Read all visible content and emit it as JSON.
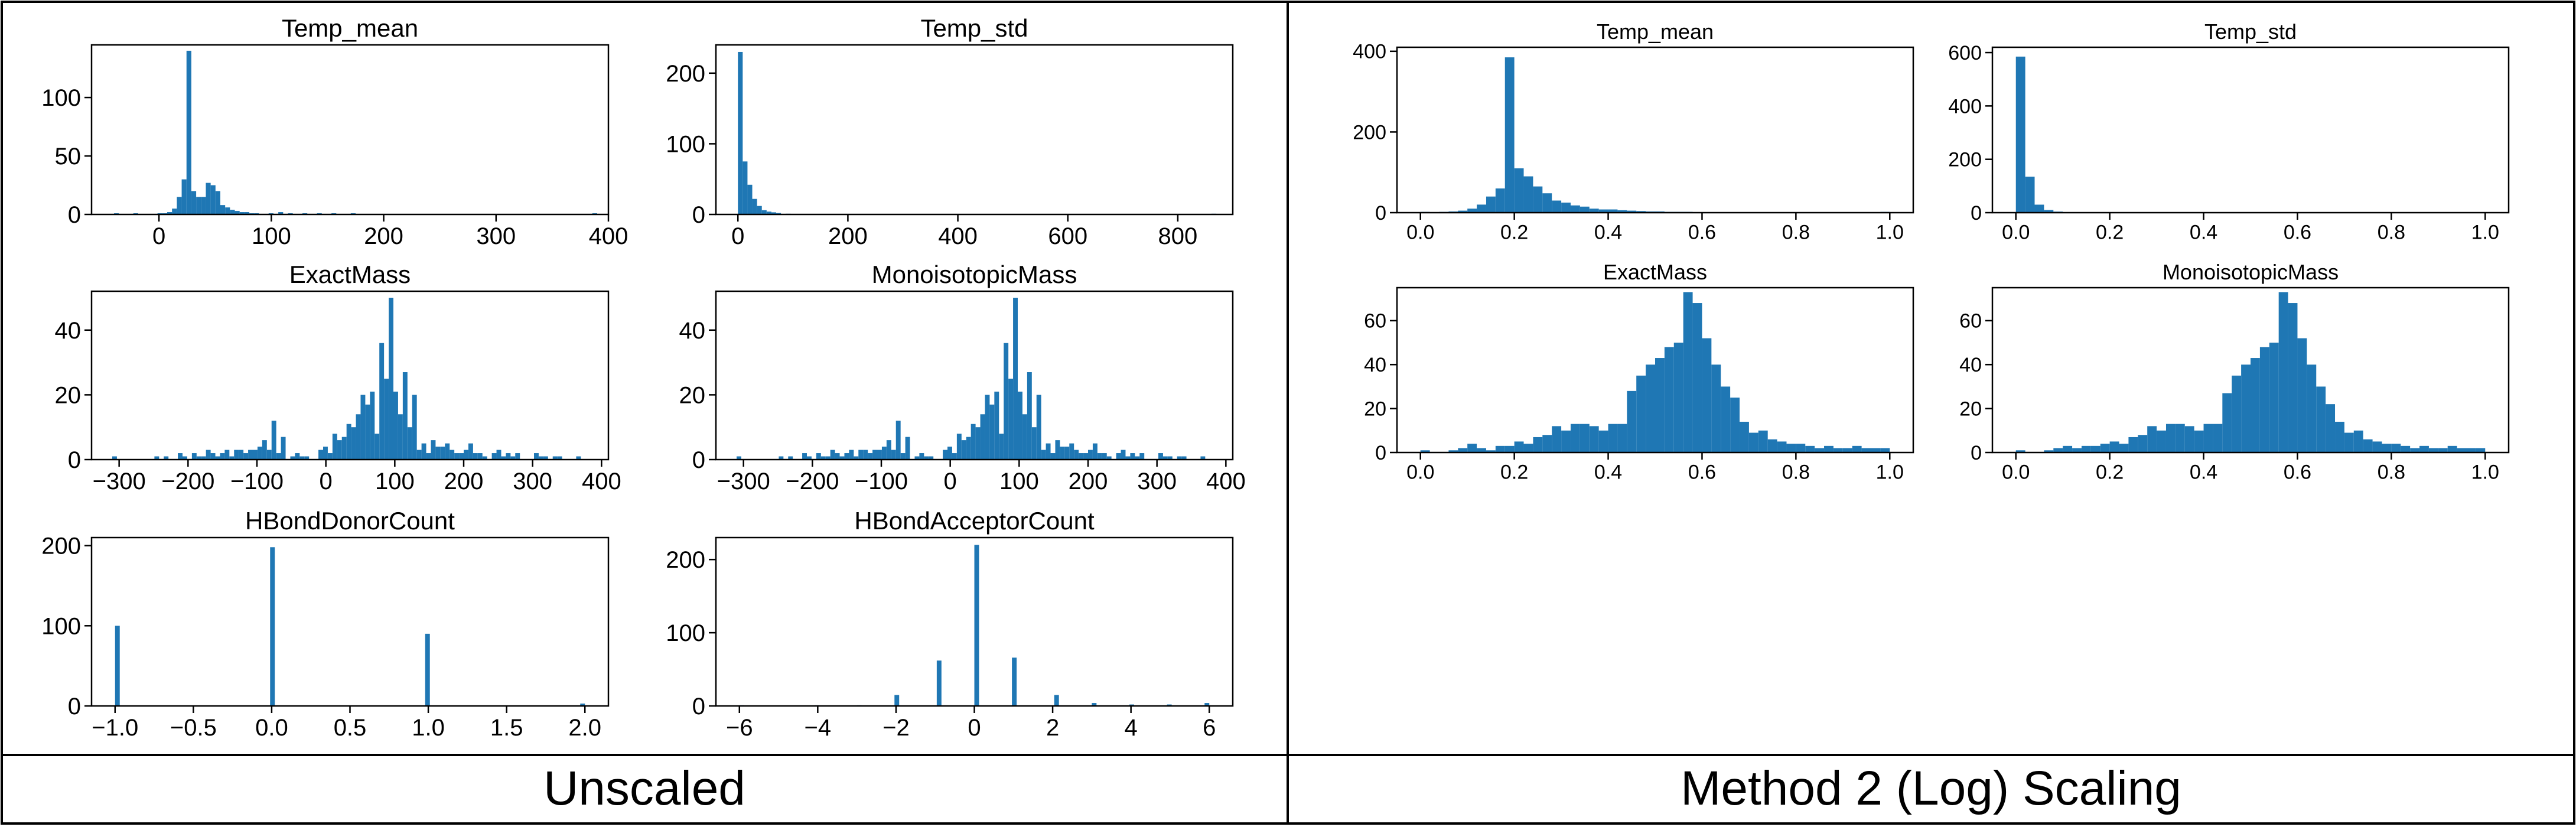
{
  "panels": [
    {
      "caption": "Unscaled"
    },
    {
      "caption": "Method 2 (Log) Scaling"
    }
  ],
  "style": {
    "bar_color": "#1f77b4",
    "border_color": "#000000",
    "background": "#ffffff"
  },
  "chart_data": [
    {
      "type": "bar",
      "panel": "unscaled",
      "title": "Temp_mean",
      "xlim": [
        -60,
        400
      ],
      "xticks": [
        0,
        100,
        200,
        300,
        400
      ],
      "ylim": [
        0,
        145
      ],
      "yticks": [
        0,
        50,
        100
      ],
      "bin_edges_start": -40,
      "bin_width": 4.3,
      "counts": [
        1,
        0,
        0,
        0,
        1,
        0,
        0,
        0,
        0,
        1,
        1,
        2,
        5,
        15,
        30,
        140,
        20,
        15,
        15,
        27,
        25,
        20,
        8,
        6,
        4,
        3,
        2,
        2,
        1,
        1,
        0,
        0,
        1,
        0,
        2,
        0,
        1,
        0,
        0,
        1,
        0,
        0,
        1,
        0,
        0,
        1,
        0,
        0,
        0,
        1,
        0,
        0,
        0,
        0,
        0,
        0,
        0,
        0,
        0,
        0,
        0,
        0,
        0,
        0,
        0,
        0,
        0,
        0,
        0,
        0,
        0,
        0,
        0,
        0,
        0,
        0,
        0,
        0,
        0,
        0,
        0,
        0,
        0,
        0,
        0,
        0,
        0,
        0,
        0,
        0,
        0,
        0,
        0,
        0,
        0,
        0,
        0,
        0,
        0,
        1
      ]
    },
    {
      "type": "bar",
      "panel": "unscaled",
      "title": "Temp_std",
      "xlim": [
        -40,
        900
      ],
      "xticks": [
        0,
        200,
        400,
        600,
        800
      ],
      "ylim": [
        0,
        240
      ],
      "yticks": [
        0,
        100,
        200
      ],
      "bin_edges_start": 0,
      "bin_width": 8.7,
      "counts": [
        230,
        75,
        42,
        22,
        12,
        6,
        4,
        3,
        2,
        0,
        1,
        0,
        0,
        0,
        0,
        0,
        0,
        0,
        0,
        0,
        0,
        0,
        0,
        0,
        0,
        0,
        0,
        0,
        0,
        0,
        0,
        0,
        0,
        0,
        0,
        0,
        0,
        0,
        0,
        0,
        0,
        0,
        0,
        0,
        0,
        0,
        0,
        0,
        0,
        0,
        0,
        0,
        0,
        0,
        0,
        0,
        0,
        0,
        0,
        0,
        0,
        0,
        0,
        0,
        0,
        0,
        0,
        0,
        0,
        0,
        0,
        0,
        0,
        0,
        0,
        0,
        0,
        0,
        0,
        0,
        0,
        0,
        0,
        0,
        0,
        0,
        0,
        0,
        0,
        0,
        0,
        0,
        0,
        0,
        0,
        0,
        0,
        0,
        0,
        1
      ]
    },
    {
      "type": "bar",
      "panel": "unscaled",
      "title": "ExactMass",
      "xlim": [
        -340,
        410
      ],
      "xticks": [
        -300,
        -200,
        -100,
        0,
        100,
        200,
        300,
        400
      ],
      "ylim": [
        0,
        52
      ],
      "yticks": [
        0,
        20,
        40
      ],
      "bin_edges_start": -310,
      "bin_width": 6.8,
      "counts": [
        1,
        0,
        0,
        0,
        0,
        0,
        0,
        0,
        0,
        1,
        0,
        1,
        0,
        0,
        2,
        1,
        0,
        2,
        1,
        1,
        3,
        2,
        1,
        2,
        3,
        1,
        3,
        3,
        2,
        3,
        3,
        4,
        6,
        3,
        12,
        2,
        7,
        0,
        1,
        2,
        1,
        1,
        0,
        0,
        3,
        4,
        2,
        8,
        6,
        7,
        11,
        10,
        14,
        20,
        17,
        21,
        8,
        36,
        25,
        50,
        21,
        14,
        27,
        10,
        20,
        3,
        5,
        2,
        6,
        4,
        4,
        5,
        3,
        2,
        2,
        3,
        5,
        2,
        2,
        1,
        0,
        2,
        3,
        1,
        2,
        1,
        2,
        0,
        0,
        0,
        2,
        1,
        1,
        0,
        1,
        1,
        0,
        0,
        0,
        1
      ]
    },
    {
      "type": "bar",
      "panel": "unscaled",
      "title": "MonoisotopicMass",
      "xlim": [
        -340,
        410
      ],
      "xticks": [
        -300,
        -200,
        -100,
        0,
        100,
        200,
        300,
        400
      ],
      "ylim": [
        0,
        52
      ],
      "yticks": [
        0,
        20,
        40
      ],
      "bin_edges_start": -310,
      "bin_width": 6.8,
      "counts": [
        1,
        0,
        0,
        0,
        0,
        0,
        0,
        0,
        0,
        1,
        0,
        1,
        0,
        0,
        2,
        1,
        0,
        2,
        1,
        1,
        3,
        2,
        1,
        2,
        3,
        1,
        3,
        3,
        2,
        3,
        3,
        4,
        6,
        3,
        12,
        2,
        7,
        0,
        1,
        2,
        1,
        1,
        0,
        0,
        3,
        4,
        2,
        8,
        6,
        7,
        11,
        10,
        14,
        20,
        17,
        21,
        8,
        36,
        25,
        50,
        21,
        14,
        27,
        10,
        20,
        3,
        5,
        2,
        6,
        4,
        4,
        5,
        3,
        2,
        2,
        3,
        5,
        2,
        2,
        1,
        0,
        2,
        3,
        1,
        2,
        1,
        2,
        0,
        0,
        0,
        2,
        1,
        1,
        0,
        1,
        1,
        0,
        0,
        0,
        1
      ]
    },
    {
      "type": "bar",
      "panel": "unscaled",
      "title": "HBondDonorCount",
      "xlim": [
        -1.15,
        2.15
      ],
      "xticks": [
        -1.0,
        -0.5,
        0.0,
        0.5,
        1.0,
        1.5,
        2.0
      ],
      "ylim": [
        0,
        210
      ],
      "yticks": [
        0,
        100,
        200
      ],
      "bin_edges_start": -1.0,
      "bin_width": 0.03,
      "counts": [
        100,
        0,
        0,
        0,
        0,
        0,
        0,
        0,
        0,
        0,
        0,
        0,
        0,
        0,
        0,
        0,
        0,
        0,
        0,
        0,
        0,
        0,
        0,
        0,
        0,
        0,
        0,
        0,
        0,
        0,
        0,
        0,
        0,
        198,
        0,
        0,
        0,
        0,
        0,
        0,
        0,
        0,
        0,
        0,
        0,
        0,
        0,
        0,
        0,
        0,
        0,
        0,
        0,
        0,
        0,
        0,
        0,
        0,
        0,
        0,
        0,
        0,
        0,
        0,
        0,
        0,
        90,
        0,
        0,
        0,
        0,
        0,
        0,
        0,
        0,
        0,
        0,
        0,
        0,
        0,
        0,
        0,
        0,
        0,
        0,
        0,
        0,
        0,
        0,
        0,
        0,
        0,
        0,
        0,
        0,
        0,
        0,
        0,
        0,
        3
      ]
    },
    {
      "type": "bar",
      "panel": "unscaled",
      "title": "HBondAcceptorCount",
      "xlim": [
        -6.6,
        6.6
      ],
      "xticks": [
        -6,
        -4,
        -2,
        0,
        2,
        4,
        6
      ],
      "ylim": [
        0,
        230
      ],
      "yticks": [
        0,
        100,
        200
      ],
      "bin_edges_start": -6.0,
      "bin_width": 0.12,
      "counts": [
        1,
        0,
        0,
        0,
        0,
        0,
        0,
        0,
        0,
        0,
        0,
        0,
        0,
        0,
        0,
        0,
        1,
        0,
        0,
        0,
        0,
        0,
        0,
        0,
        0,
        1,
        0,
        0,
        0,
        0,
        0,
        0,
        0,
        15,
        0,
        0,
        0,
        0,
        0,
        0,
        0,
        0,
        62,
        0,
        0,
        0,
        0,
        0,
        0,
        0,
        220,
        0,
        0,
        0,
        0,
        0,
        0,
        0,
        66,
        0,
        0,
        0,
        0,
        0,
        0,
        0,
        0,
        15,
        0,
        0,
        0,
        0,
        0,
        0,
        0,
        4,
        0,
        0,
        0,
        0,
        0,
        0,
        0,
        2,
        0,
        0,
        0,
        0,
        0,
        0,
        0,
        2,
        0,
        0,
        0,
        0,
        0,
        0,
        0,
        4
      ]
    },
    {
      "type": "bar",
      "panel": "log",
      "title": "Temp_mean",
      "xlim": [
        -0.05,
        1.05
      ],
      "xticks": [
        0.0,
        0.2,
        0.4,
        0.6,
        0.8,
        1.0
      ],
      "ylim": [
        0,
        410
      ],
      "yticks": [
        0,
        200,
        400
      ],
      "bin_edges_start": 0.0,
      "bin_width": 0.02,
      "counts": [
        2,
        1,
        2,
        3,
        5,
        10,
        20,
        40,
        60,
        385,
        110,
        90,
        65,
        48,
        30,
        25,
        18,
        15,
        10,
        8,
        8,
        6,
        5,
        4,
        3,
        3,
        2,
        2,
        2,
        1,
        1,
        1,
        1,
        0,
        0,
        0,
        0,
        0,
        0,
        0,
        0,
        0,
        0,
        0,
        0,
        0,
        0,
        0,
        0,
        2
      ]
    },
    {
      "type": "bar",
      "panel": "log",
      "title": "Temp_std",
      "xlim": [
        -0.05,
        1.05
      ],
      "xticks": [
        0.0,
        0.2,
        0.4,
        0.6,
        0.8,
        1.0
      ],
      "ylim": [
        0,
        620
      ],
      "yticks": [
        0,
        200,
        400,
        600
      ],
      "bin_edges_start": 0.0,
      "bin_width": 0.02,
      "counts": [
        585,
        135,
        30,
        10,
        4,
        2,
        0,
        0,
        0,
        0,
        0,
        0,
        0,
        0,
        0,
        0,
        0,
        0,
        0,
        0,
        0,
        0,
        0,
        0,
        0,
        0,
        0,
        0,
        0,
        0,
        0,
        0,
        0,
        0,
        0,
        0,
        0,
        0,
        0,
        0,
        0,
        0,
        0,
        0,
        0,
        0,
        0,
        0,
        0,
        2
      ]
    },
    {
      "type": "bar",
      "panel": "log",
      "title": "ExactMass",
      "xlim": [
        -0.05,
        1.05
      ],
      "xticks": [
        0.0,
        0.2,
        0.4,
        0.6,
        0.8,
        1.0
      ],
      "ylim": [
        0,
        75
      ],
      "yticks": [
        0,
        20,
        40,
        60
      ],
      "bin_edges_start": 0.0,
      "bin_width": 0.02,
      "counts": [
        1,
        0,
        0,
        1,
        2,
        4,
        2,
        1,
        3,
        3,
        5,
        4,
        7,
        8,
        12,
        10,
        13,
        13,
        12,
        10,
        13,
        13,
        28,
        35,
        40,
        43,
        48,
        50,
        73,
        68,
        52,
        40,
        30,
        25,
        14,
        9,
        10,
        6,
        5,
        4,
        4,
        3,
        2,
        3,
        2,
        2,
        3,
        2,
        2,
        2
      ]
    },
    {
      "type": "bar",
      "panel": "log",
      "title": "MonoisotopicMass",
      "xlim": [
        -0.05,
        1.05
      ],
      "xticks": [
        0.0,
        0.2,
        0.4,
        0.6,
        0.8,
        1.0
      ],
      "ylim": [
        0,
        75
      ],
      "yticks": [
        0,
        20,
        40,
        60
      ],
      "bin_edges_start": 0.0,
      "bin_width": 0.02,
      "counts": [
        1,
        0,
        0,
        1,
        2,
        3,
        2,
        3,
        3,
        4,
        5,
        4,
        7,
        8,
        12,
        10,
        13,
        13,
        12,
        10,
        13,
        13,
        27,
        35,
        40,
        43,
        48,
        50,
        73,
        68,
        52,
        40,
        30,
        22,
        14,
        9,
        10,
        6,
        5,
        4,
        4,
        3,
        2,
        3,
        2,
        2,
        3,
        2,
        2,
        2
      ]
    }
  ]
}
